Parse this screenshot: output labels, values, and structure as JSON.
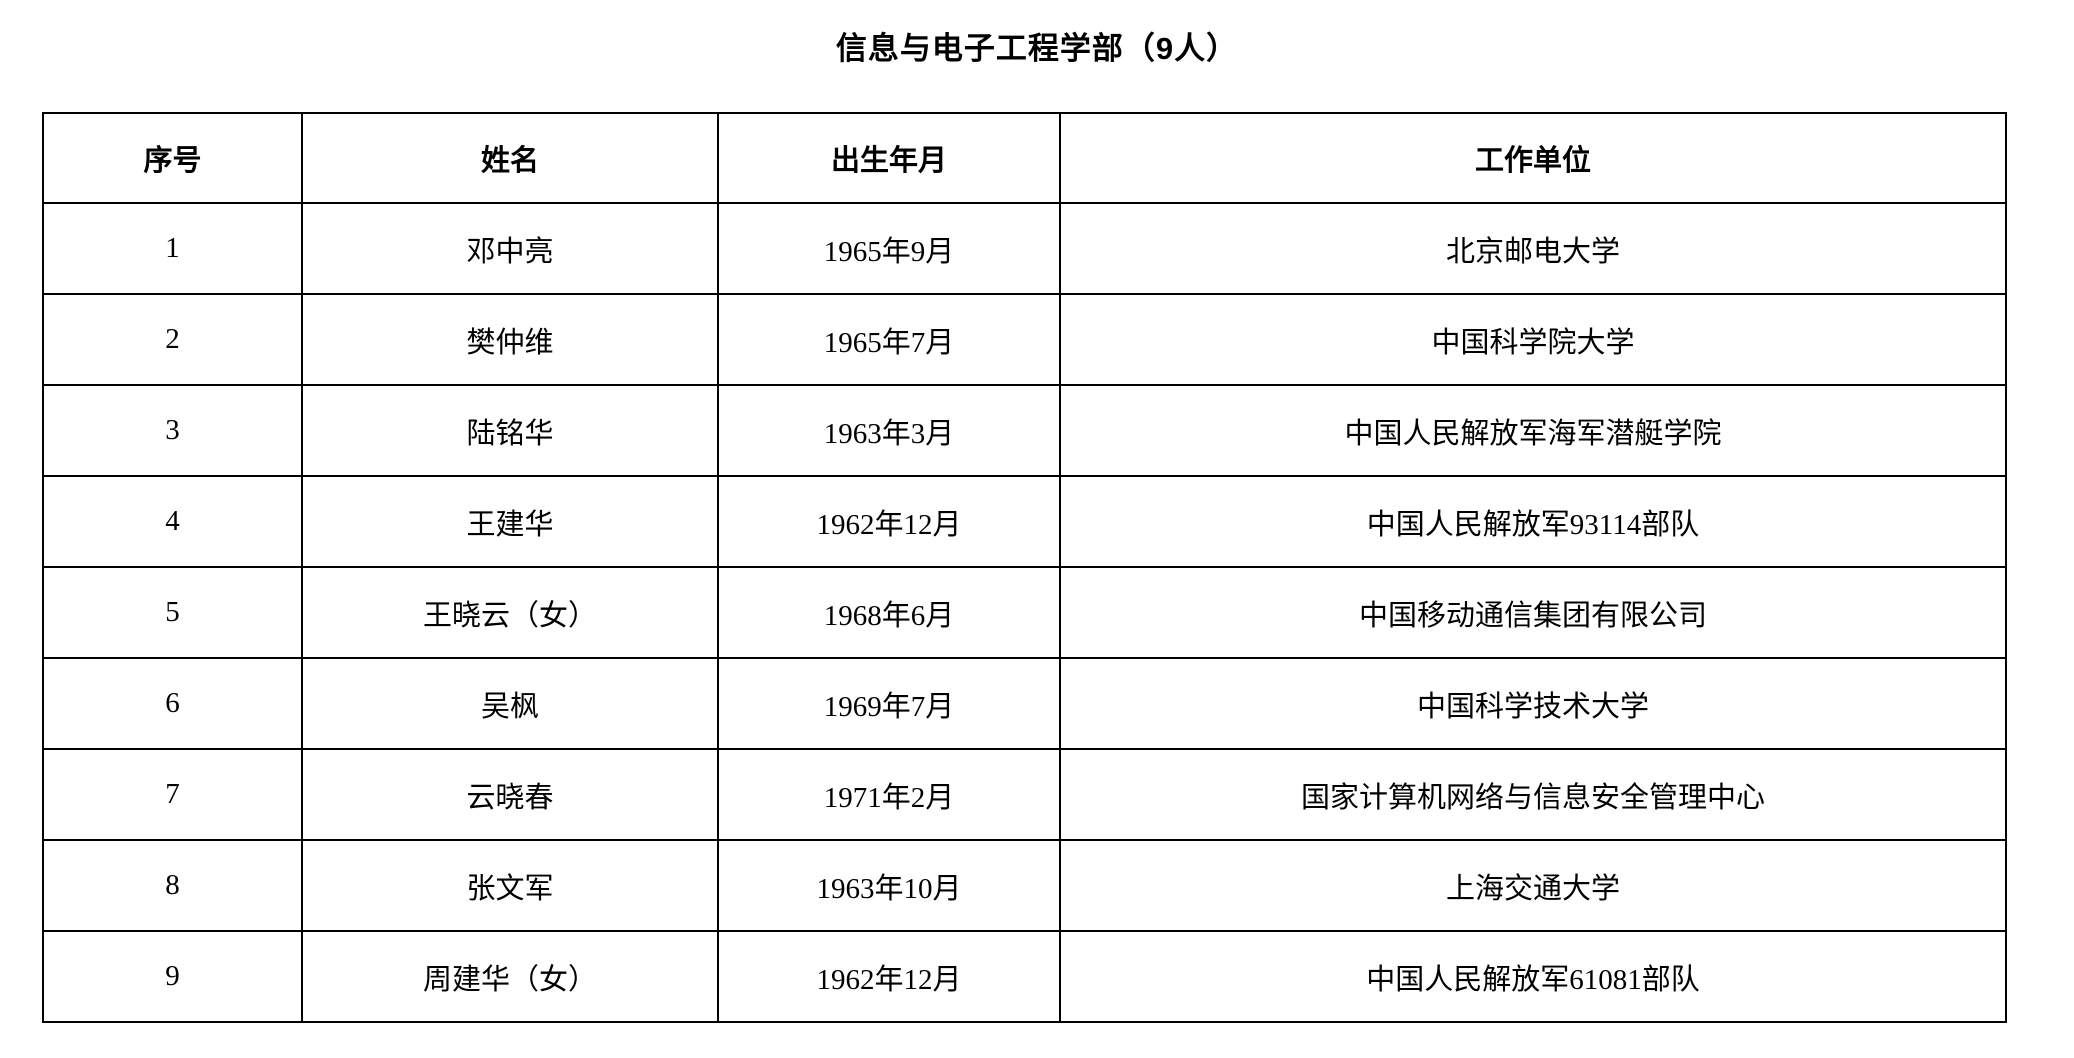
{
  "page": {
    "title": "信息与电子工程学部（9人）"
  },
  "table": {
    "headers": [
      "序号",
      "姓名",
      "出生年月",
      "工作单位"
    ],
    "rows": [
      {
        "no": "1",
        "name": "邓中亮",
        "birth": "1965年9月",
        "unit": "北京邮电大学"
      },
      {
        "no": "2",
        "name": "樊仲维",
        "birth": "1965年7月",
        "unit": "中国科学院大学"
      },
      {
        "no": "3",
        "name": "陆铭华",
        "birth": "1963年3月",
        "unit": "中国人民解放军海军潜艇学院"
      },
      {
        "no": "4",
        "name": "王建华",
        "birth": "1962年12月",
        "unit": "中国人民解放军93114部队"
      },
      {
        "no": "5",
        "name": "王晓云（女）",
        "birth": "1968年6月",
        "unit": "中国移动通信集团有限公司"
      },
      {
        "no": "6",
        "name": "吴枫",
        "birth": "1969年7月",
        "unit": "中国科学技术大学"
      },
      {
        "no": "7",
        "name": "云晓春",
        "birth": "1971年2月",
        "unit": "国家计算机网络与信息安全管理中心"
      },
      {
        "no": "8",
        "name": "张文军",
        "birth": "1963年10月",
        "unit": "上海交通大学"
      },
      {
        "no": "9",
        "name": "周建华（女）",
        "birth": "1962年12月",
        "unit": "中国人民解放军61081部队"
      }
    ]
  }
}
